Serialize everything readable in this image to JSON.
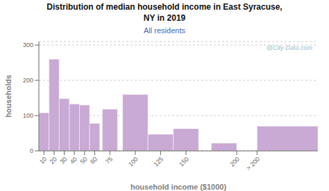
{
  "chart_data": {
    "type": "bar",
    "title": "Distribution of median household income in East Syracuse,\nNY in 2019",
    "subtitle": "All residents",
    "xlabel": "household income ($1000)",
    "ylabel": "households",
    "x_left": [
      5,
      15,
      25,
      35,
      45,
      55,
      67.5,
      87.5,
      112.5,
      137.5,
      175,
      220
    ],
    "widths": [
      10,
      10,
      10,
      10,
      10,
      10,
      15,
      25,
      25,
      25,
      25,
      60
    ],
    "values": [
      108,
      260,
      148,
      133,
      130,
      78,
      118,
      160,
      47,
      63,
      22,
      70
    ],
    "color": "#c9aad4",
    "xlim": [
      5,
      280
    ],
    "xticks": [
      10,
      20,
      30,
      40,
      50,
      60,
      75,
      100,
      125,
      150,
      200,
      {
        "value": 220,
        "label": "> 200"
      }
    ],
    "ylim": [
      0,
      310
    ],
    "yticks": [
      0,
      100,
      200,
      300
    ],
    "grid": true,
    "annotations": [
      "@City-Data.com"
    ]
  }
}
